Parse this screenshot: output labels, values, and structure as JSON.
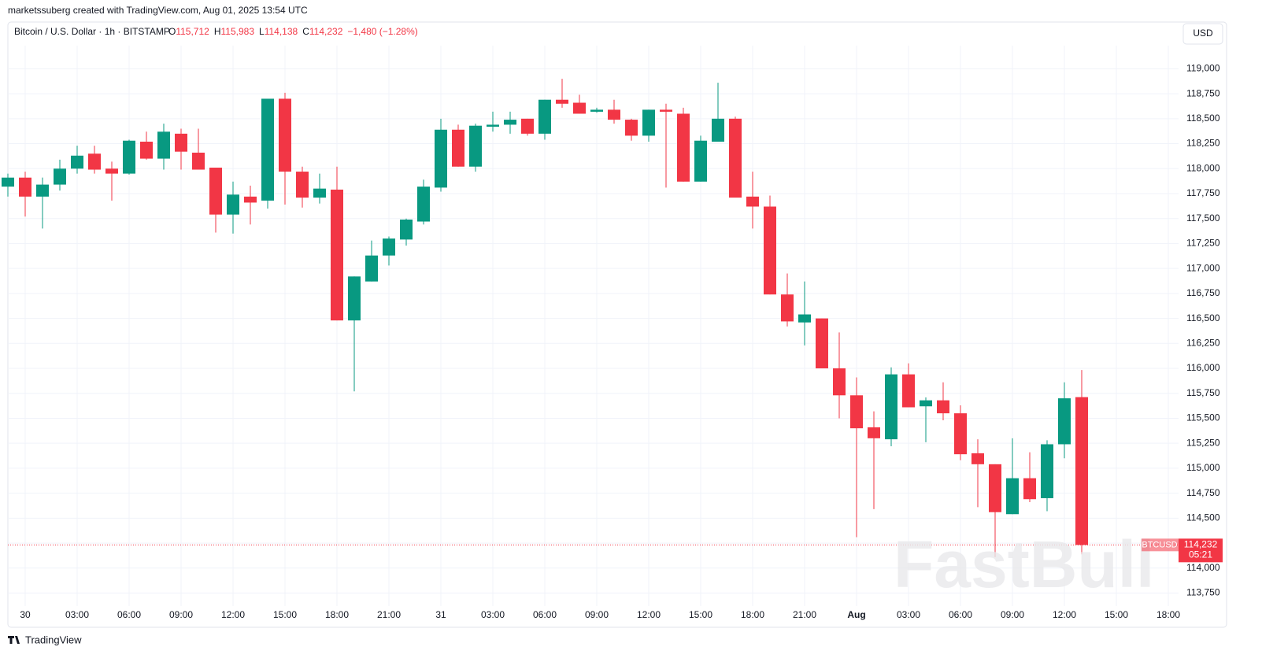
{
  "header": {
    "credit": "marketssuberg created with TradingView.com, Aug 01, 2025 13:54 UTC",
    "symbol": "Bitcoin / U.S. Dollar · 1h · BITSTAMP",
    "ohlc": [
      {
        "key": "O",
        "value": "115,712"
      },
      {
        "key": "H",
        "value": "115,983"
      },
      {
        "key": "L",
        "value": "114,138"
      },
      {
        "key": "C",
        "value": "114,232"
      }
    ],
    "change": "−1,480 (−1.28%)",
    "currency": "USD"
  },
  "footer": {
    "brand": "TradingView"
  },
  "watermark": "FastBull",
  "chart_data": {
    "type": "candlestick",
    "up_color": "#089981",
    "down_color": "#f23645",
    "grid": true,
    "categories": [
      null,
      "30",
      null,
      null,
      "03:00",
      null,
      null,
      "06:00",
      null,
      null,
      "09:00",
      null,
      null,
      "12:00",
      null,
      null,
      "15:00",
      null,
      null,
      "18:00",
      null,
      null,
      "21:00",
      null,
      null,
      "31",
      null,
      null,
      "03:00",
      null,
      null,
      "06:00",
      null,
      null,
      "09:00",
      null,
      null,
      "12:00",
      null,
      null,
      "15:00",
      null,
      null,
      "18:00",
      null,
      null,
      "21:00",
      null,
      null,
      "Aug",
      null,
      null,
      "03:00",
      null,
      null,
      "06:00",
      null,
      null,
      "09:00",
      null,
      null,
      "12:00",
      null,
      null,
      "15:00",
      null,
      null,
      "18:00"
    ],
    "open": [
      117820,
      117910,
      117720,
      117840,
      118000,
      118150,
      118000,
      117950,
      118270,
      118100,
      118350,
      118160,
      118010,
      117540,
      117720,
      117680,
      118700,
      117970,
      117710,
      117790,
      116480,
      116870,
      117130,
      117290,
      117470,
      117810,
      118390,
      118020,
      118420,
      118440,
      118500,
      118350,
      118690,
      118660,
      118570,
      118590,
      118490,
      118330,
      118590,
      118550,
      117870,
      118270,
      118500,
      117720,
      117620,
      116740,
      116460,
      116500,
      116000,
      115730,
      115410,
      115290,
      115940,
      115620,
      115680,
      115550,
      115150,
      115040,
      114540,
      114900,
      114700,
      115240,
      115712,
      null,
      null,
      null,
      null,
      null
    ],
    "high": [
      117950,
      117970,
      117910,
      118090,
      118230,
      118230,
      118070,
      118290,
      118370,
      118450,
      118400,
      118400,
      118010,
      117870,
      117830,
      118700,
      118760,
      118020,
      117950,
      118020,
      116920,
      117280,
      117320,
      117500,
      117890,
      118500,
      118440,
      118450,
      118570,
      118570,
      118500,
      118690,
      118900,
      118740,
      118610,
      118690,
      118500,
      118590,
      118650,
      118610,
      118330,
      118860,
      118520,
      117970,
      117730,
      116950,
      116870,
      116500,
      116360,
      115910,
      115570,
      116010,
      116050,
      115710,
      115860,
      115630,
      115290,
      115040,
      115300,
      115160,
      115280,
      115860,
      115983,
      null,
      null,
      null,
      null,
      null
    ],
    "low": [
      117720,
      117520,
      117400,
      117780,
      117950,
      117950,
      117680,
      117940,
      118090,
      117990,
      117990,
      117990,
      117360,
      117350,
      117440,
      117600,
      117640,
      117610,
      117650,
      116480,
      115770,
      116870,
      117030,
      117230,
      117440,
      117770,
      118020,
      117970,
      118370,
      118350,
      118330,
      118290,
      118610,
      118550,
      118560,
      118450,
      118280,
      118270,
      117810,
      117870,
      117870,
      118270,
      117710,
      117400,
      116740,
      116420,
      116230,
      116000,
      115500,
      114310,
      114590,
      115220,
      115610,
      115260,
      115480,
      115080,
      114610,
      114110,
      114540,
      114660,
      114570,
      115100,
      114138,
      null,
      null,
      null,
      null,
      null
    ],
    "close": [
      117910,
      117720,
      117840,
      118000,
      118130,
      117990,
      117950,
      118280,
      118100,
      118370,
      118170,
      117990,
      117540,
      117740,
      117660,
      118700,
      117970,
      117710,
      117800,
      116480,
      116920,
      117130,
      117300,
      117490,
      117820,
      118390,
      118020,
      118430,
      118440,
      118490,
      118350,
      118690,
      118650,
      118550,
      118590,
      118490,
      118330,
      118590,
      118570,
      117870,
      118280,
      118500,
      117710,
      117620,
      116740,
      116470,
      116540,
      116000,
      115730,
      115400,
      115300,
      115940,
      115610,
      115680,
      115550,
      115140,
      115040,
      114560,
      114900,
      114690,
      115240,
      115700,
      114232,
      null,
      null,
      null,
      null,
      null
    ],
    "ylim": [
      113620,
      119200
    ],
    "yticks": [
      {
        "value": 113750,
        "label": "113,750"
      },
      {
        "value": 114000,
        "label": "114,000"
      },
      {
        "value": 114250,
        "label": "114,250"
      },
      {
        "value": 114500,
        "label": "114,500"
      },
      {
        "value": 114750,
        "label": "114,750"
      },
      {
        "value": 115000,
        "label": "115,000"
      },
      {
        "value": 115250,
        "label": "115,250"
      },
      {
        "value": 115500,
        "label": "115,500"
      },
      {
        "value": 115750,
        "label": "115,750"
      },
      {
        "value": 116000,
        "label": "116,000"
      },
      {
        "value": 116250,
        "label": "116,250"
      },
      {
        "value": 116500,
        "label": "116,500"
      },
      {
        "value": 116750,
        "label": "116,750"
      },
      {
        "value": 117000,
        "label": "117,000"
      },
      {
        "value": 117250,
        "label": "117,250"
      },
      {
        "value": 117500,
        "label": "117,500"
      },
      {
        "value": 117750,
        "label": "117,750"
      },
      {
        "value": 118000,
        "label": "118,000"
      },
      {
        "value": 118250,
        "label": "118,250"
      },
      {
        "value": 118500,
        "label": "118,500"
      },
      {
        "value": 118750,
        "label": "118,750"
      },
      {
        "value": 119000,
        "label": "119,000"
      }
    ],
    "last_price": {
      "symbol": "BTCUSD",
      "label": "114,232",
      "countdown": "05:21"
    }
  }
}
